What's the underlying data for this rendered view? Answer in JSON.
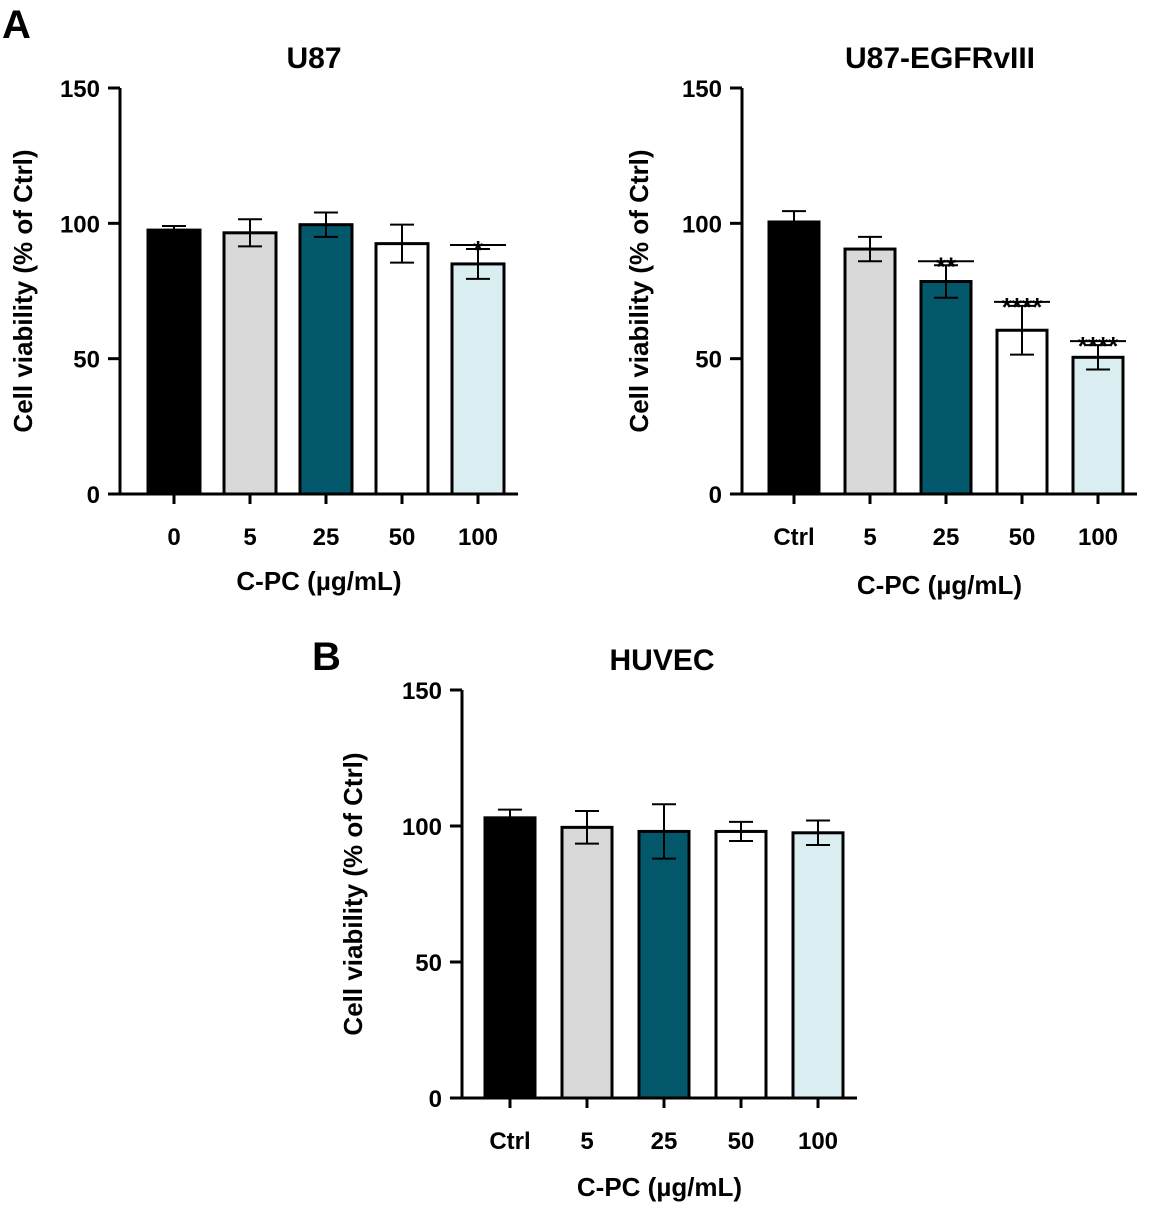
{
  "panels": [
    {
      "letter": "A"
    },
    {
      "letter": "B"
    }
  ],
  "chart_data": [
    {
      "type": "bar",
      "panel": "A",
      "title": "U87",
      "xlabel": "C-PC (µg/mL)",
      "ylabel": "Cell viability (% of Ctrl)",
      "ylim": [
        0,
        150
      ],
      "yticks": [
        "0",
        "50",
        "100",
        "150"
      ],
      "categories": [
        "0",
        "5",
        "25",
        "50",
        "100"
      ],
      "values": [
        97.5,
        96.5,
        99.5,
        92.5,
        85
      ],
      "errors": [
        1.5,
        5,
        4.5,
        7,
        5.5
      ],
      "significance": [
        "",
        "",
        "",
        "",
        "*"
      ],
      "bar_colors": [
        "#000000",
        "#d9d9d9",
        "#03586c",
        "#ffffff",
        "#daeef2"
      ]
    },
    {
      "type": "bar",
      "panel": "A",
      "title": "U87-EGFRvIII",
      "xlabel": "C-PC (µg/mL)",
      "ylabel": "Cell viability (% of Ctrl)",
      "ylim": [
        0,
        150
      ],
      "yticks": [
        "0",
        "50",
        "100",
        "150"
      ],
      "categories": [
        "Ctrl",
        "5",
        "25",
        "50",
        "100"
      ],
      "values": [
        100.5,
        90.5,
        78.5,
        60.5,
        50.5
      ],
      "errors": [
        4,
        4.5,
        6,
        9,
        4.5
      ],
      "significance": [
        "",
        "",
        "**",
        "****",
        "****"
      ],
      "bar_colors": [
        "#000000",
        "#d9d9d9",
        "#03586c",
        "#ffffff",
        "#daeef2"
      ]
    },
    {
      "type": "bar",
      "panel": "B",
      "title": "HUVEC",
      "xlabel": "C-PC (µg/mL)",
      "ylabel": "Cell viability (% of Ctrl)",
      "ylim": [
        0,
        150
      ],
      "yticks": [
        "0",
        "50",
        "100",
        "150"
      ],
      "categories": [
        "Ctrl",
        "5",
        "25",
        "50",
        "100"
      ],
      "values": [
        103,
        99.5,
        98,
        98,
        97.5
      ],
      "errors": [
        3,
        6,
        10,
        3.5,
        4.5
      ],
      "significance": [
        "",
        "",
        "",
        "",
        ""
      ],
      "bar_colors": [
        "#000000",
        "#d9d9d9",
        "#03586c",
        "#ffffff",
        "#daeef2"
      ]
    }
  ]
}
